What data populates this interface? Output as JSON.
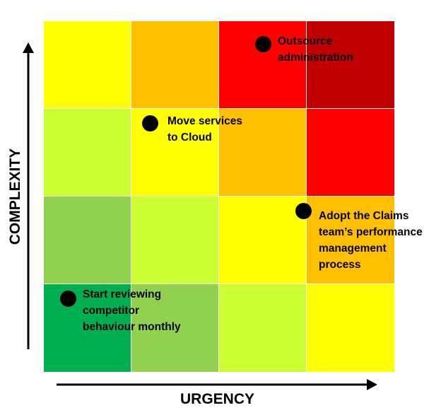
{
  "axes": {
    "x_title": "URGENCY",
    "y_title": "COMPLEXITY"
  },
  "grid": {
    "rows": [
      [
        "#ffff00",
        "#ffc000",
        "#ff0000",
        "#c00000"
      ],
      [
        "#ccff33",
        "#ffff00",
        "#ffc000",
        "#ff0000"
      ],
      [
        "#92d050",
        "#ccff33",
        "#ffff00",
        "#ffc000"
      ],
      [
        "#00b050",
        "#92d050",
        "#ccff33",
        "#ffff00"
      ]
    ]
  },
  "items": [
    {
      "lines": [
        "Outsource",
        "administration"
      ]
    },
    {
      "lines": [
        "Move services",
        "to Cloud"
      ]
    },
    {
      "lines": [
        "Adopt the Claims",
        "team’s performance",
        "management",
        "process"
      ]
    },
    {
      "lines": [
        "Start reviewing",
        "competitor",
        "behaviour monthly"
      ]
    }
  ]
}
